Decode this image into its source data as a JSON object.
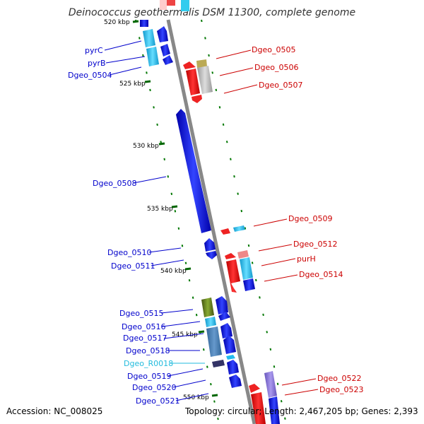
{
  "title": "Deinococcus geothermalis DSM 11300, complete genome",
  "footer": {
    "accession": "Accession: NC_008025",
    "summary": "Topology: circular; Length: 2,467,205 bp; Genes: 2,393"
  },
  "tick_labels": [
    "520 kbp",
    "525 kbp",
    "530 kbp",
    "535 kbp",
    "540 kbp",
    "545 kbp",
    "550 kbp"
  ],
  "left_labels": [
    {
      "text": "pyrC",
      "color": "#0000cc"
    },
    {
      "text": "pyrB",
      "color": "#0000cc"
    },
    {
      "text": "Dgeo_0504",
      "color": "#0000cc"
    },
    {
      "text": "Dgeo_0508",
      "color": "#0000cc"
    },
    {
      "text": "Dgeo_0510",
      "color": "#0000cc"
    },
    {
      "text": "Dgeo_0511",
      "color": "#0000cc"
    },
    {
      "text": "Dgeo_0515",
      "color": "#0000cc"
    },
    {
      "text": "Dgeo_0516",
      "color": "#0000cc"
    },
    {
      "text": "Dgeo_0517",
      "color": "#0000cc"
    },
    {
      "text": "Dgeo_0518",
      "color": "#0000cc"
    },
    {
      "text": "Dgeo_R0018",
      "color": "#22bbdd"
    },
    {
      "text": "Dgeo_0519",
      "color": "#0000cc"
    },
    {
      "text": "Dgeo_0520",
      "color": "#0000cc"
    },
    {
      "text": "Dgeo_0521",
      "color": "#0000cc"
    }
  ],
  "right_labels": [
    {
      "text": "Dgeo_0505",
      "color": "#cc0000"
    },
    {
      "text": "Dgeo_0506",
      "color": "#cc0000"
    },
    {
      "text": "Dgeo_0507",
      "color": "#cc0000"
    },
    {
      "text": "Dgeo_0509",
      "color": "#cc0000"
    },
    {
      "text": "Dgeo_0512",
      "color": "#cc0000"
    },
    {
      "text": "purH",
      "color": "#cc0000"
    },
    {
      "text": "Dgeo_0514",
      "color": "#cc0000"
    },
    {
      "text": "Dgeo_0522",
      "color": "#cc0000"
    },
    {
      "text": "Dgeo_0523",
      "color": "#cc0000"
    }
  ],
  "colors": {
    "backbone": "#888888",
    "reverse_strand": "#0000ee",
    "forward_strand": "#ee0000",
    "cyan_gene": "#33ccee",
    "grey_gene": "#bbbbbb",
    "olive_gene": "#667722",
    "tick": "#006600"
  }
}
